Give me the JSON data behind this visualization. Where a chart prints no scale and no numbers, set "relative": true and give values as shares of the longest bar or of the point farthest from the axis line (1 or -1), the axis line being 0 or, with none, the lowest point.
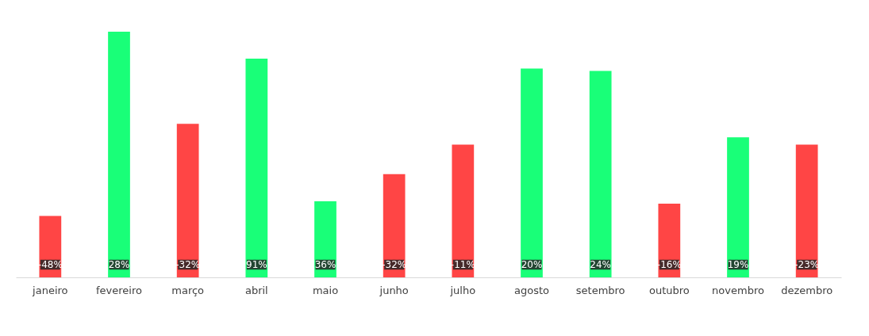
{
  "chart_data": {
    "type": "bar",
    "relative": true,
    "categories": [
      "janeiro",
      "fevereiro",
      "março",
      "abril",
      "maio",
      "junho",
      "julho",
      "agosto",
      "setembro",
      "outubro",
      "novembro",
      "dezembro"
    ],
    "values": [
      0.25,
      1,
      0.625,
      0.89,
      0.31,
      0.42,
      0.54,
      0.85,
      0.84,
      0.3,
      0.57,
      0.54
    ],
    "colors": [
      "#ff4545",
      "#19ff78",
      "#ff4545",
      "#19ff78",
      "#19ff78",
      "#ff4545",
      "#ff4545",
      "#19ff78",
      "#19ff78",
      "#ff4545",
      "#19ff78",
      "#ff4545"
    ],
    "annotations": [
      {
        "text": "-48%",
        "x": "janeiro"
      },
      {
        "text": "28%",
        "x": "fevereiro"
      },
      {
        "text": "-32%",
        "x": "março"
      },
      {
        "text": "91%",
        "x": "abril"
      },
      {
        "text": "36%",
        "x": "maio"
      },
      {
        "text": "-32%",
        "x": "junho"
      },
      {
        "text": "-11%",
        "x": "julho"
      },
      {
        "text": "20%",
        "x": "agosto"
      },
      {
        "text": "24%",
        "x": "setembro"
      },
      {
        "text": "-16%",
        "x": "outubro"
      },
      {
        "text": "19%",
        "x": "novembro"
      },
      {
        "text": "-23%",
        "x": "dezembro"
      }
    ],
    "grid": false
  }
}
